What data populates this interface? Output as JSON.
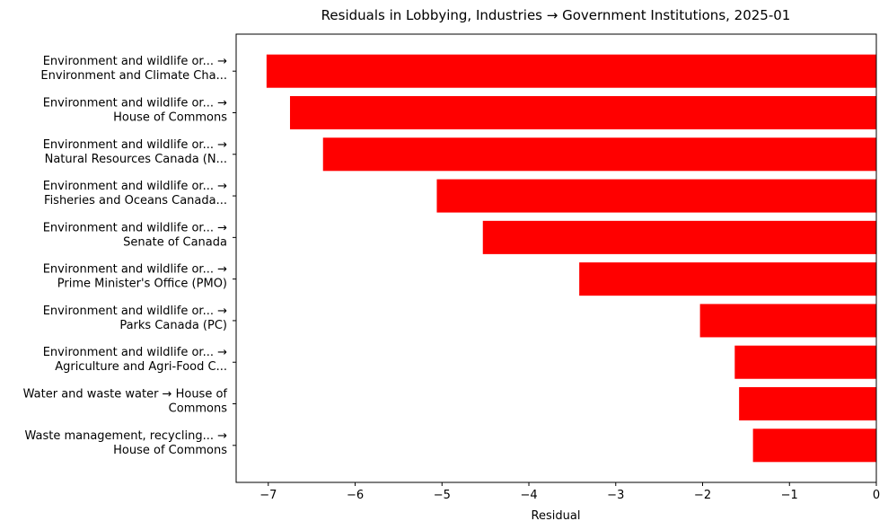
{
  "chart_data": {
    "type": "barh",
    "title": "Residuals in Lobbying, Industries → Government Institutions, 2025-01",
    "xlabel": "Residual",
    "categories": [
      [
        "Environment and wildlife or... →",
        "Environment and Climate Cha..."
      ],
      [
        "Environment and wildlife or... →",
        "House of Commons"
      ],
      [
        "Environment and wildlife or... →",
        "Natural Resources Canada (N..."
      ],
      [
        "Environment and wildlife or... →",
        "Fisheries and Oceans Canada..."
      ],
      [
        "Environment and wildlife or... →",
        "Senate of Canada"
      ],
      [
        "Environment and wildlife or... →",
        "Prime Minister's Office (PMO)"
      ],
      [
        "Environment and wildlife or... →",
        "Parks Canada (PC)"
      ],
      [
        "Environment and wildlife or... →",
        "Agriculture and Agri-Food C..."
      ],
      [
        "Water and waste water → House of",
        "Commons"
      ],
      [
        "Waste management, recycling... →",
        "House of Commons"
      ]
    ],
    "values": [
      -7.02,
      -6.75,
      -6.37,
      -5.06,
      -4.53,
      -3.42,
      -2.03,
      -1.63,
      -1.58,
      -1.42
    ],
    "color": "#ff0000",
    "xlim": [
      -7.37,
      0
    ],
    "xticks": [
      {
        "value": -7,
        "label": "−7"
      },
      {
        "value": -6,
        "label": "−6"
      },
      {
        "value": -5,
        "label": "−5"
      },
      {
        "value": -4,
        "label": "−4"
      },
      {
        "value": -3,
        "label": "−3"
      },
      {
        "value": -2,
        "label": "−2"
      },
      {
        "value": -1,
        "label": "−1"
      },
      0
    ],
    "grid": false
  }
}
